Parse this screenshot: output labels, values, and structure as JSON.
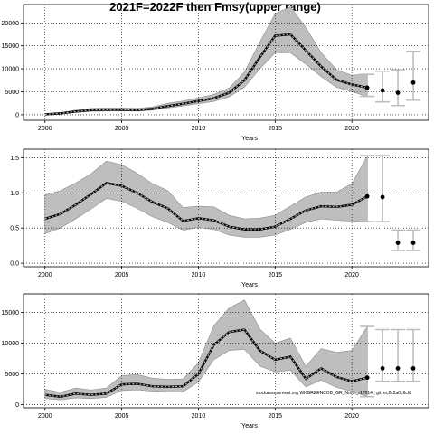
{
  "figure": {
    "title": "2021F=2022F then Fmsy(upper range)",
    "footnote": "stockassessment.org  WKGREENCOD_GR_North_r17014  ;  git: ec2c2a0c6cfd"
  },
  "colors": {
    "band": "#bebebe",
    "band_edge": "#8c8c8c",
    "median_line": "#000000",
    "dash_line": "#000000",
    "point": "#000000",
    "error_bar": "#bebebe",
    "grid": "#000000"
  },
  "chart_data": [
    {
      "type": "line",
      "title": "",
      "xlabel": "Years",
      "ylabel": "",
      "xlim": [
        1998.6,
        2025.0
      ],
      "ylim": [
        -1200,
        24000
      ],
      "xticks": [
        "2000",
        "2005",
        "2010",
        "2015",
        "2020"
      ],
      "yticks": [
        "0",
        "5000",
        "10000",
        "15000",
        "20000"
      ],
      "grid": true,
      "x": [
        2000,
        2001,
        2002,
        2003,
        2004,
        2005,
        2006,
        2007,
        2008,
        2009,
        2010,
        2011,
        2012,
        2013,
        2014,
        2015,
        2016,
        2017,
        2018,
        2019,
        2020,
        2021
      ],
      "median": [
        100,
        300,
        700,
        1000,
        1100,
        1100,
        1000,
        1300,
        1900,
        2400,
        3000,
        3600,
        4800,
        7500,
        12500,
        17200,
        17500,
        14000,
        10500,
        7600,
        6600,
        5900
      ],
      "lower": [
        50,
        200,
        500,
        750,
        800,
        850,
        800,
        1000,
        1500,
        1900,
        2400,
        2900,
        3900,
        6000,
        10000,
        13500,
        13500,
        11000,
        8300,
        6000,
        5000,
        4000
      ],
      "upper": [
        150,
        500,
        1000,
        1400,
        1500,
        1500,
        1400,
        1700,
        2500,
        3000,
        3700,
        4400,
        5800,
        9300,
        15800,
        22000,
        23500,
        19000,
        13500,
        9800,
        8600,
        8900
      ],
      "forecast": {
        "x": [
          2021,
          2022,
          2023,
          2024
        ],
        "median": [
          5900,
          5300,
          4800,
          7000
        ],
        "lower": [
          4000,
          2800,
          2000,
          3200
        ],
        "upper": [
          8800,
          9500,
          9800,
          13800
        ]
      }
    },
    {
      "type": "line",
      "title": "",
      "xlabel": "Years",
      "ylabel": "",
      "xlim": [
        1998.6,
        2025.0
      ],
      "ylim": [
        -0.05,
        1.62
      ],
      "xticks": [
        "2000",
        "2005",
        "2010",
        "2015",
        "2020"
      ],
      "yticks": [
        "0.0",
        "0.5",
        "1.0",
        "1.5"
      ],
      "grid": true,
      "x": [
        2000,
        2001,
        2002,
        2003,
        2004,
        2005,
        2006,
        2007,
        2008,
        2009,
        2010,
        2011,
        2012,
        2013,
        2014,
        2015,
        2016,
        2017,
        2018,
        2019,
        2020,
        2021
      ],
      "median": [
        0.63,
        0.7,
        0.83,
        0.98,
        1.14,
        1.1,
        1.0,
        0.87,
        0.78,
        0.6,
        0.64,
        0.61,
        0.52,
        0.48,
        0.48,
        0.52,
        0.63,
        0.75,
        0.81,
        0.8,
        0.83,
        0.95
      ],
      "lower": [
        0.42,
        0.5,
        0.63,
        0.77,
        0.92,
        0.88,
        0.78,
        0.66,
        0.58,
        0.47,
        0.51,
        0.48,
        0.4,
        0.37,
        0.37,
        0.4,
        0.48,
        0.58,
        0.63,
        0.61,
        0.6,
        0.59
      ],
      "upper": [
        0.97,
        1.03,
        1.14,
        1.27,
        1.45,
        1.4,
        1.28,
        1.13,
        1.03,
        0.79,
        0.81,
        0.8,
        0.68,
        0.63,
        0.64,
        0.68,
        0.81,
        0.94,
        1.01,
        1.01,
        1.13,
        1.52
      ],
      "forecast": {
        "x": [
          2021,
          2022,
          2023,
          2024
        ],
        "median": [
          0.95,
          0.94,
          0.29,
          0.29
        ],
        "lower": [
          0.59,
          0.59,
          0.18,
          0.18
        ],
        "upper": [
          1.53,
          1.53,
          0.47,
          0.47
        ]
      }
    },
    {
      "type": "line",
      "title": "",
      "xlabel": "Years",
      "ylabel": "",
      "xlim": [
        1998.6,
        2025.0
      ],
      "ylim": [
        -500,
        18000
      ],
      "xticks": [
        "2000",
        "2005",
        "2010",
        "2015",
        "2020"
      ],
      "yticks": [
        "0",
        "5000",
        "10000",
        "15000"
      ],
      "grid": true,
      "x": [
        2000,
        2001,
        2002,
        2003,
        2004,
        2005,
        2006,
        2007,
        2008,
        2009,
        2010,
        2011,
        2012,
        2013,
        2014,
        2015,
        2016,
        2017,
        2018,
        2019,
        2020,
        2021
      ],
      "median": [
        1600,
        1300,
        1800,
        1600,
        1800,
        3300,
        3400,
        3000,
        2900,
        3000,
        5000,
        9700,
        11800,
        12200,
        8800,
        7300,
        7800,
        4200,
        5900,
        4500,
        3800,
        4400
      ],
      "lower": [
        1000,
        800,
        1100,
        1000,
        1200,
        2300,
        2400,
        2200,
        2100,
        2100,
        3700,
        7300,
        8800,
        9000,
        6300,
        5300,
        5600,
        2900,
        4000,
        2800,
        2200,
        1300
      ],
      "upper": [
        2500,
        2000,
        2700,
        2400,
        2700,
        4700,
        4900,
        4300,
        4100,
        4200,
        6800,
        12800,
        15700,
        17000,
        12300,
        10000,
        10800,
        6200,
        9100,
        8500,
        8800,
        12700
      ],
      "forecast": {
        "x": [
          2021,
          2022,
          2023,
          2024
        ],
        "median": [
          4400,
          5900,
          5900,
          5900
        ],
        "lower": [
          1300,
          3800,
          3800,
          3800
        ],
        "upper": [
          12700,
          12200,
          12200,
          12200
        ]
      }
    }
  ]
}
